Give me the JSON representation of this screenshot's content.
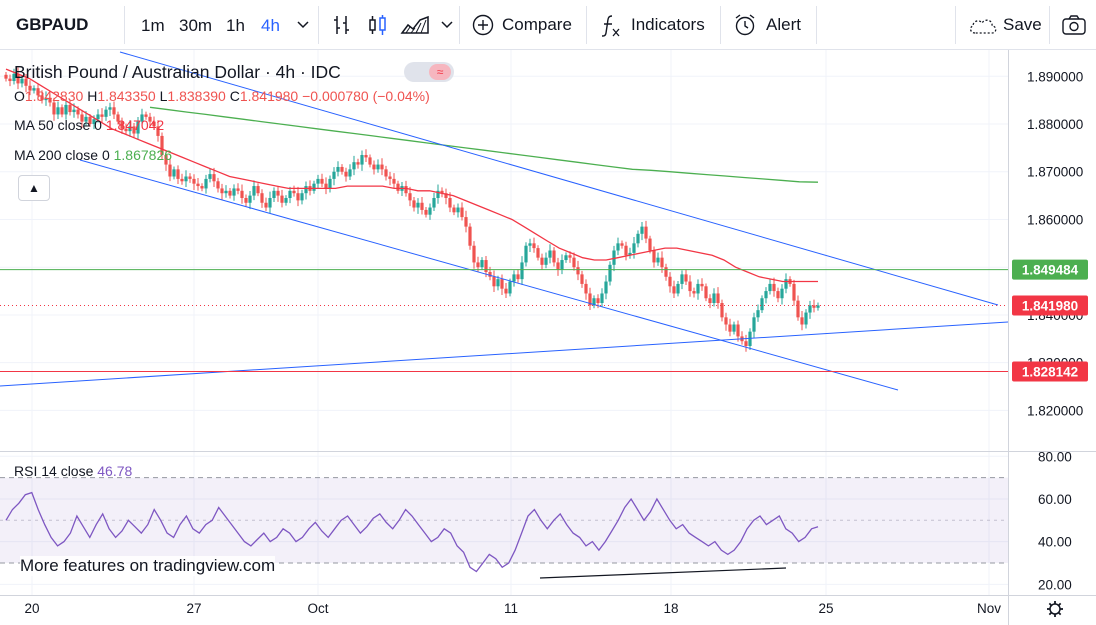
{
  "toolbar": {
    "symbol": "GBPAUD",
    "intervals": [
      {
        "label": "1m",
        "active": false
      },
      {
        "label": "30m",
        "active": false
      },
      {
        "label": "1h",
        "active": false
      },
      {
        "label": "4h",
        "active": true
      }
    ],
    "compare_label": "Compare",
    "indicators_label": "Indicators",
    "alert_label": "Alert",
    "save_label": "Save"
  },
  "legend": {
    "title": "British Pound / Australian Dollar · 4h · IDC",
    "ohlc": {
      "o_label": "O",
      "o": "1.842830",
      "h_label": "H",
      "h": "1.843350",
      "l_label": "L",
      "l": "1.838390",
      "c_label": "C",
      "c": "1.841980",
      "change": "−0.000780 (−0.04%)"
    },
    "ma50": {
      "label": "MA 50 close 0",
      "value": "1.847042"
    },
    "ma200": {
      "label": "MA 200 close 0",
      "value": "1.867826"
    },
    "rsi": {
      "label": "RSI 14 close",
      "value": "46.78"
    }
  },
  "watermark": "More features on tradingview.com",
  "colors": {
    "up": "#26a69a",
    "down": "#ef5350",
    "ma50": "#f23645",
    "ma200": "#4caf50",
    "rsi": "#7e57c2",
    "trendline": "#2962ff",
    "level_green": "#4caf50",
    "level_red": "#f23645",
    "rsi_band": "#7e57c2"
  },
  "chart_data": [
    {
      "type": "candlestick",
      "x": [
        "20",
        "27",
        "Oct",
        "11",
        "18",
        "25",
        "Nov"
      ],
      "ylim": [
        1.8115,
        1.8955
      ],
      "yticks": [
        "1.890000",
        "1.880000",
        "1.870000",
        "1.860000",
        "1.850000",
        "1.840000",
        "1.830000",
        "1.820000"
      ],
      "close_series": [
        1.8895,
        1.889,
        1.8905,
        1.8885,
        1.8895,
        1.888,
        1.887,
        1.8875,
        1.886,
        1.885,
        1.8855,
        1.8845,
        1.882,
        1.8835,
        1.882,
        1.884,
        1.8825,
        1.883,
        1.882,
        1.8805,
        1.8815,
        1.88,
        1.881,
        1.882,
        1.8815,
        1.883,
        1.8835,
        1.882,
        1.8805,
        1.879,
        1.8785,
        1.8795,
        1.878,
        1.8805,
        1.882,
        1.8815,
        1.8805,
        1.8795,
        1.8775,
        1.8735,
        1.8715,
        1.869,
        1.8705,
        1.8685,
        1.868,
        1.869,
        1.8685,
        1.8675,
        1.867,
        1.8665,
        1.8685,
        1.8695,
        1.868,
        1.8665,
        1.8655,
        1.866,
        1.865,
        1.8665,
        1.866,
        1.8645,
        1.8635,
        1.865,
        1.867,
        1.8655,
        1.8635,
        1.8625,
        1.8645,
        1.866,
        1.865,
        1.8635,
        1.8645,
        1.866,
        1.8655,
        1.864,
        1.8655,
        1.867,
        1.866,
        1.8675,
        1.8685,
        1.8675,
        1.8665,
        1.8685,
        1.87,
        1.871,
        1.87,
        1.869,
        1.8705,
        1.872,
        1.8715,
        1.8735,
        1.873,
        1.8715,
        1.8705,
        1.8715,
        1.8705,
        1.869,
        1.8685,
        1.8675,
        1.866,
        1.867,
        1.8655,
        1.864,
        1.8625,
        1.8635,
        1.862,
        1.861,
        1.8625,
        1.8645,
        1.866,
        1.8655,
        1.8645,
        1.8625,
        1.8615,
        1.8625,
        1.8605,
        1.8585,
        1.8545,
        1.851,
        1.85,
        1.8515,
        1.849,
        1.848,
        1.846,
        1.8475,
        1.8455,
        1.8445,
        1.847,
        1.8485,
        1.8475,
        1.851,
        1.8545,
        1.855,
        1.854,
        1.852,
        1.8505,
        1.852,
        1.8535,
        1.851,
        1.8495,
        1.8515,
        1.8525,
        1.852,
        1.85,
        1.8485,
        1.8465,
        1.8445,
        1.842,
        1.8435,
        1.8425,
        1.8445,
        1.847,
        1.8505,
        1.8535,
        1.855,
        1.8545,
        1.8525,
        1.853,
        1.855,
        1.857,
        1.8585,
        1.856,
        1.8535,
        1.851,
        1.852,
        1.85,
        1.848,
        1.846,
        1.8445,
        1.8465,
        1.8485,
        1.847,
        1.845,
        1.8445,
        1.8465,
        1.846,
        1.8435,
        1.8425,
        1.8445,
        1.8425,
        1.8395,
        1.838,
        1.8365,
        1.838,
        1.8355,
        1.8345,
        1.8335,
        1.8365,
        1.8395,
        1.841,
        1.8435,
        1.845,
        1.8465,
        1.845,
        1.8435,
        1.8455,
        1.8475,
        1.8465,
        1.843,
        1.8395,
        1.838,
        1.8405,
        1.842,
        1.8415,
        1.842
      ],
      "ma50": [
        1.8915,
        1.8905,
        1.8895,
        1.888,
        1.8865,
        1.885,
        1.8835,
        1.882,
        1.8805,
        1.879,
        1.878,
        1.877,
        1.876,
        1.875,
        1.874,
        1.873,
        1.872,
        1.871,
        1.87,
        1.869,
        1.8685,
        1.868,
        1.8675,
        1.867,
        1.8665,
        1.8665,
        1.8665,
        1.8665,
        1.8665,
        1.867,
        1.867,
        1.867,
        1.867,
        1.8665,
        1.8665,
        1.866,
        1.866,
        1.8655,
        1.865,
        1.864,
        1.863,
        1.862,
        1.861,
        1.86,
        1.8585,
        1.857,
        1.8555,
        1.854,
        1.853,
        1.852,
        1.8515,
        1.8515,
        1.852,
        1.8525,
        1.853,
        1.8535,
        1.854,
        1.854,
        1.8535,
        1.853,
        1.8525,
        1.8515,
        1.85,
        1.849,
        1.848,
        1.8475,
        1.847,
        1.847,
        1.847,
        1.847
      ],
      "ma200": [
        1.8835,
        1.883,
        1.8825,
        1.882,
        1.8815,
        1.881,
        1.8805,
        1.88,
        1.8795,
        1.879,
        1.8785,
        1.878,
        1.8775,
        1.877,
        1.8765,
        1.876,
        1.8755,
        1.875,
        1.8745,
        1.874,
        1.8735,
        1.873,
        1.8725,
        1.872,
        1.8715,
        1.871,
        1.8705,
        1.8703,
        1.87,
        1.8697,
        1.8694,
        1.8691,
        1.8688,
        1.8685,
        1.8682,
        1.8679,
        1.8678
      ],
      "horizontal_levels": [
        {
          "value": 1.849484,
          "label": "1.849484",
          "color": "#4caf50"
        },
        {
          "value": 1.84198,
          "label": "1.841980",
          "color": "#f23645",
          "dotted": true
        },
        {
          "value": 1.828142,
          "label": "1.828142",
          "color": "#f23645"
        }
      ]
    },
    {
      "type": "line",
      "name": "RSI 14 close",
      "ylim": [
        15,
        82
      ],
      "yticks": [
        "80.00",
        "60.00",
        "40.00",
        "20.00"
      ],
      "bands": [
        70,
        30
      ],
      "values": [
        50,
        55,
        58,
        62,
        63,
        55,
        48,
        42,
        38,
        40,
        44,
        52,
        47,
        42,
        48,
        53,
        46,
        42,
        45,
        50,
        47,
        44,
        48,
        55,
        50,
        44,
        42,
        48,
        52,
        46,
        44,
        48,
        50,
        56,
        52,
        48,
        44,
        40,
        38,
        41,
        44,
        40,
        42,
        46,
        44,
        40,
        42,
        46,
        49,
        45,
        42,
        46,
        50,
        52,
        48,
        44,
        47,
        51,
        53,
        49,
        46,
        50,
        55,
        52,
        48,
        44,
        40,
        42,
        46,
        44,
        38,
        35,
        28,
        26,
        30,
        34,
        32,
        28,
        30,
        36,
        44,
        52,
        55,
        50,
        46,
        50,
        53,
        48,
        44,
        42,
        38,
        40,
        36,
        40,
        45,
        50,
        56,
        60,
        55,
        50,
        54,
        60,
        55,
        50,
        46,
        48,
        44,
        42,
        40,
        38,
        40,
        36,
        34,
        36,
        40,
        46,
        50,
        52,
        48,
        50,
        52,
        46,
        44,
        40,
        42,
        46,
        47
      ]
    }
  ]
}
